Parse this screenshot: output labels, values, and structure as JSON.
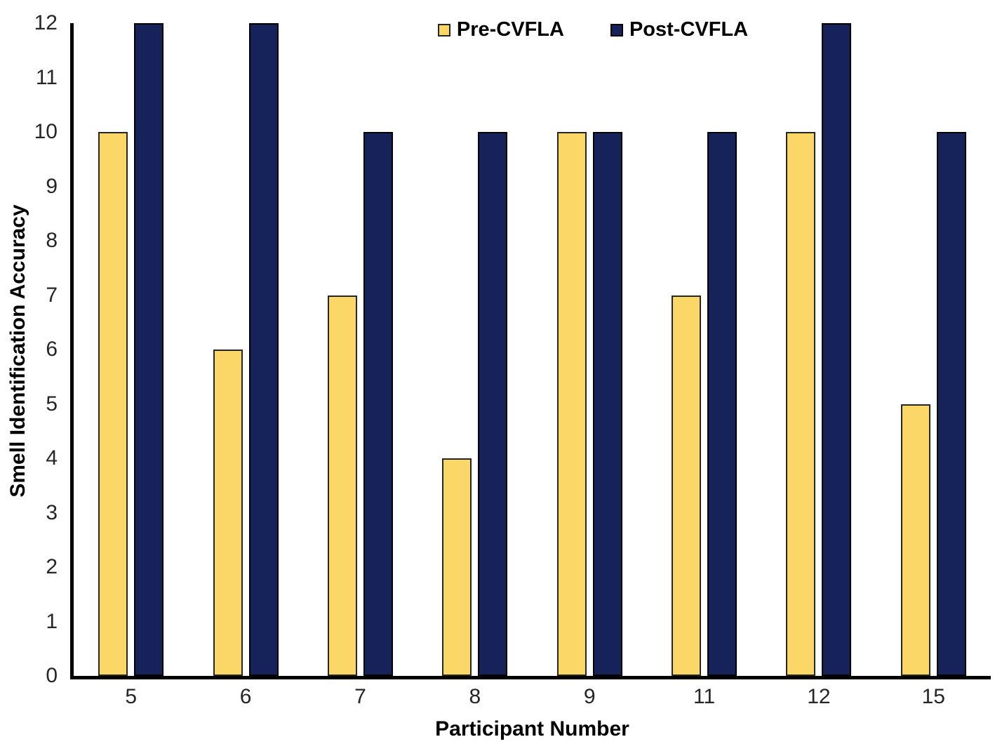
{
  "chart_data": {
    "type": "bar",
    "title": "",
    "categories": [
      "5",
      "6",
      "7",
      "8",
      "9",
      "11",
      "12",
      "15"
    ],
    "series": [
      {
        "name": "Pre-CVFLA",
        "color": "#FAD767",
        "border_color": "#262626",
        "values": [
          10,
          6,
          7,
          4,
          10,
          7,
          10,
          5
        ]
      },
      {
        "name": "Post-CVFLA",
        "color": "#16235B",
        "border_color": "#000000",
        "values": [
          12,
          12,
          10,
          10,
          10,
          10,
          12,
          10
        ]
      }
    ],
    "xlabel": "Participant Number",
    "ylabel": "Smell Identification Accuracy",
    "ylim": [
      0,
      12
    ],
    "ytick_step": 1,
    "yticks": [
      0,
      1,
      2,
      3,
      4,
      5,
      6,
      7,
      8,
      9,
      10,
      11,
      12
    ],
    "grid": false,
    "legend_position": "top-center",
    "axis_color": "#000000",
    "background_color": "#ffffff"
  }
}
